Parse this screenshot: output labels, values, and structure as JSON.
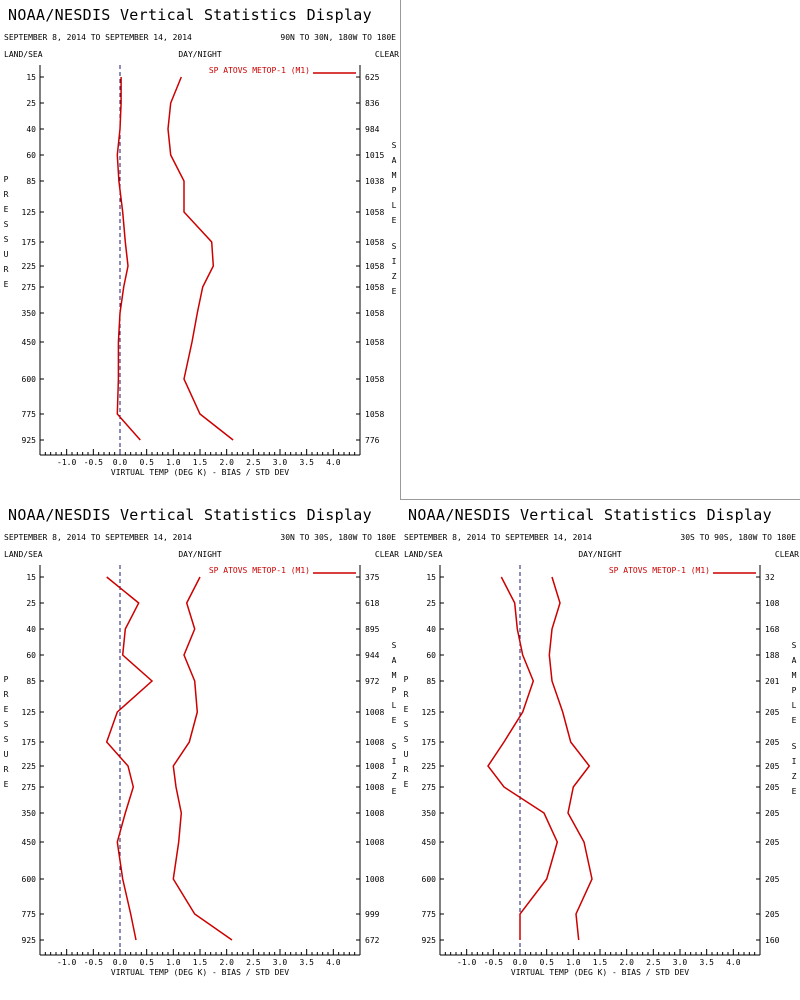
{
  "colors": {
    "series": "#cc0000",
    "axis": "#000000",
    "zero_line": "#1a1a6e",
    "divider": "#9a9a9a"
  },
  "chart_data": [
    {
      "type": "line",
      "title": "NOAA/NESDIS Vertical Statistics Display",
      "date_range": "SEPTEMBER 8, 2014 TO SEPTEMBER 14, 2014",
      "region": "90N TO 30N, 180W TO 180E",
      "land_sea": "LAND/SEA",
      "day_night": "DAY/NIGHT",
      "clear": "CLEAR",
      "left_axis_label": "PRESSURE",
      "right_axis_label": "SAMPLE SIZE",
      "xlabel": "VIRTUAL TEMP (DEG K) - BIAS / STD DEV",
      "legend": "SP ATOVS METOP-1 (M1)",
      "legend_position": "top-right",
      "xlim": [
        -1.5,
        4.5
      ],
      "x_ticks": [
        "-1.0",
        "-0.5",
        "0.0",
        "0.5",
        "1.0",
        "1.5",
        "2.0",
        "2.5",
        "3.0",
        "3.5",
        "4.0"
      ],
      "pressure_levels": [
        "15",
        "25",
        "40",
        "60",
        "85",
        "125",
        "175",
        "225",
        "275",
        "350",
        "450",
        "600",
        "775",
        "925"
      ],
      "sample_sizes": [
        "625",
        "836",
        "984",
        "1015",
        "1038",
        "1058",
        "1058",
        "1058",
        "1058",
        "1058",
        "1058",
        "1058",
        "1058",
        "776"
      ],
      "series": [
        {
          "name": "BIAS",
          "values": [
            0.02,
            0.02,
            0.0,
            -0.05,
            -0.02,
            0.05,
            0.1,
            0.15,
            0.07,
            0.0,
            -0.03,
            -0.03,
            -0.05,
            0.38
          ]
        },
        {
          "name": "STD DEV",
          "values": [
            1.15,
            0.95,
            0.9,
            0.95,
            1.2,
            1.2,
            1.72,
            1.75,
            1.55,
            1.45,
            1.35,
            1.2,
            1.5,
            2.12
          ]
        }
      ]
    },
    {
      "type": "line",
      "title": "NOAA/NESDIS Vertical Statistics Display",
      "date_range": "SEPTEMBER 8, 2014 TO SEPTEMBER 14, 2014",
      "region": "30N TO 30S, 180W TO 180E",
      "land_sea": "LAND/SEA",
      "day_night": "DAY/NIGHT",
      "clear": "CLEAR",
      "left_axis_label": "PRESSURE",
      "right_axis_label": "SAMPLE SIZE",
      "xlabel": "VIRTUAL TEMP (DEG K) - BIAS / STD DEV",
      "legend": "SP ATOVS METOP-1 (M1)",
      "legend_position": "top-right",
      "xlim": [
        -1.5,
        4.5
      ],
      "x_ticks": [
        "-1.0",
        "-0.5",
        "0.0",
        "0.5",
        "1.0",
        "1.5",
        "2.0",
        "2.5",
        "3.0",
        "3.5",
        "4.0"
      ],
      "pressure_levels": [
        "15",
        "25",
        "40",
        "60",
        "85",
        "125",
        "175",
        "225",
        "275",
        "350",
        "450",
        "600",
        "775",
        "925"
      ],
      "sample_sizes": [
        "375",
        "618",
        "895",
        "944",
        "972",
        "1008",
        "1008",
        "1008",
        "1008",
        "1008",
        "1008",
        "1008",
        "999",
        "672"
      ],
      "series": [
        {
          "name": "BIAS",
          "values": [
            -0.25,
            0.35,
            0.1,
            0.05,
            0.6,
            -0.05,
            -0.25,
            0.15,
            0.25,
            0.1,
            -0.05,
            0.05,
            0.2,
            0.3
          ]
        },
        {
          "name": "STD DEV",
          "values": [
            1.5,
            1.25,
            1.4,
            1.2,
            1.4,
            1.45,
            1.3,
            1.0,
            1.05,
            1.15,
            1.1,
            1.0,
            1.4,
            2.1
          ]
        }
      ]
    },
    {
      "type": "line",
      "title": "NOAA/NESDIS Vertical Statistics Display",
      "date_range": "SEPTEMBER 8, 2014 TO SEPTEMBER 14, 2014",
      "region": "30S TO 90S, 180W TO 180E",
      "land_sea": "LAND/SEA",
      "day_night": "DAY/NIGHT",
      "clear": "CLEAR",
      "left_axis_label": "PRESSURE",
      "right_axis_label": "SAMPLE SIZE",
      "xlabel": "VIRTUAL TEMP (DEG K) - BIAS / STD DEV",
      "legend": "SP ATOVS METOP-1 (M1)",
      "legend_position": "top-right",
      "xlim": [
        -1.5,
        4.5
      ],
      "x_ticks": [
        "-1.0",
        "-0.5",
        "0.0",
        "0.5",
        "1.0",
        "1.5",
        "2.0",
        "2.5",
        "3.0",
        "3.5",
        "4.0"
      ],
      "pressure_levels": [
        "15",
        "25",
        "40",
        "60",
        "85",
        "125",
        "175",
        "225",
        "275",
        "350",
        "450",
        "600",
        "775",
        "925"
      ],
      "sample_sizes": [
        "32",
        "108",
        "168",
        "188",
        "201",
        "205",
        "205",
        "205",
        "205",
        "205",
        "205",
        "205",
        "205",
        "160"
      ],
      "series": [
        {
          "name": "BIAS",
          "values": [
            -0.35,
            -0.1,
            -0.05,
            0.05,
            0.25,
            0.05,
            -0.3,
            -0.6,
            -0.3,
            0.45,
            0.7,
            0.5,
            0.0,
            0.0
          ]
        },
        {
          "name": "STD DEV",
          "values": [
            0.6,
            0.75,
            0.6,
            0.55,
            0.6,
            0.8,
            0.95,
            1.3,
            1.0,
            0.9,
            1.2,
            1.35,
            1.05,
            1.1
          ]
        }
      ]
    }
  ]
}
